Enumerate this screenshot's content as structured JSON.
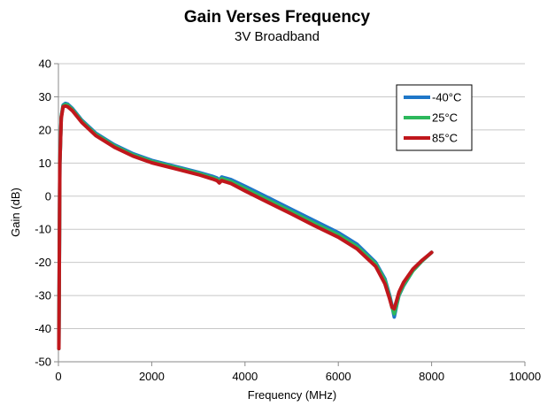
{
  "chart_data": {
    "type": "line",
    "title": "Gain Verses Frequency",
    "subtitle": "3V Broadband",
    "xlabel": "Frequency (MHz)",
    "ylabel": "Gain (dB)",
    "xlim": [
      0,
      10000
    ],
    "ylim": [
      -50,
      40
    ],
    "x_ticks": [
      "0",
      "2000",
      "4000",
      "6000",
      "8000",
      "10000"
    ],
    "y_ticks": [
      "40",
      "30",
      "20",
      "10",
      "0",
      "-10",
      "-20",
      "-30",
      "-40",
      "-50"
    ],
    "grid": "horizontal",
    "legend_position": "top-right",
    "series": [
      {
        "name": "-40°C",
        "color": "#1f77c8",
        "x": [
          10,
          30,
          60,
          100,
          150,
          200,
          300,
          500,
          800,
          1200,
          1600,
          2000,
          2500,
          3000,
          3300,
          3400,
          3450,
          3500,
          3700,
          4000,
          4500,
          5000,
          5500,
          6000,
          6400,
          6800,
          7000,
          7100,
          7150,
          7200,
          7250,
          7300,
          7400,
          7600,
          7800,
          8000
        ],
        "y": [
          -46,
          10,
          24,
          27.5,
          28,
          27.8,
          26.5,
          23,
          19,
          15.5,
          12.8,
          10.8,
          9,
          7.2,
          6,
          5.5,
          4.8,
          5.8,
          5,
          3,
          -0.5,
          -4,
          -7.5,
          -11,
          -14.5,
          -20,
          -25,
          -30,
          -33,
          -36.5,
          -33,
          -30,
          -27,
          -22.5,
          -19.5,
          -17
        ]
      },
      {
        "name": "25°C",
        "color": "#2db85c",
        "x": [
          10,
          30,
          60,
          100,
          150,
          200,
          300,
          500,
          800,
          1200,
          1600,
          2000,
          2500,
          3000,
          3300,
          3400,
          3450,
          3500,
          3700,
          4000,
          4500,
          5000,
          5500,
          6000,
          6400,
          6800,
          7000,
          7100,
          7150,
          7200,
          7250,
          7300,
          7400,
          7600,
          7800,
          8000
        ],
        "y": [
          -46,
          10,
          24,
          27.3,
          27.7,
          27.5,
          26.2,
          22.7,
          18.7,
          15.2,
          12.5,
          10.5,
          8.7,
          6.9,
          5.6,
          5.1,
          4.4,
          5.3,
          4.4,
          2.3,
          -1.2,
          -4.7,
          -8.3,
          -11.7,
          -15.2,
          -20.5,
          -25.5,
          -30.5,
          -33.5,
          -35.5,
          -32.8,
          -29.8,
          -26.8,
          -22.5,
          -19.5,
          -17
        ]
      },
      {
        "name": "85°C",
        "color": "#c0171c",
        "x": [
          10,
          30,
          60,
          100,
          150,
          200,
          300,
          500,
          800,
          1200,
          1600,
          2000,
          2500,
          3000,
          3300,
          3400,
          3450,
          3500,
          3700,
          4000,
          4500,
          5000,
          5500,
          6000,
          6400,
          6800,
          7000,
          7100,
          7150,
          7200,
          7250,
          7300,
          7400,
          7600,
          7800,
          8000
        ],
        "y": [
          -46,
          10,
          23.5,
          27,
          27.2,
          27,
          25.8,
          22.3,
          18.3,
          14.8,
          12.1,
          10.1,
          8.3,
          6.5,
          5.2,
          4.7,
          4.0,
          4.7,
          3.8,
          1.6,
          -1.9,
          -5.4,
          -9,
          -12.4,
          -15.9,
          -21.2,
          -26.5,
          -31,
          -33.5,
          -34,
          -31.5,
          -29,
          -26,
          -22,
          -19.3,
          -17
        ]
      }
    ]
  }
}
